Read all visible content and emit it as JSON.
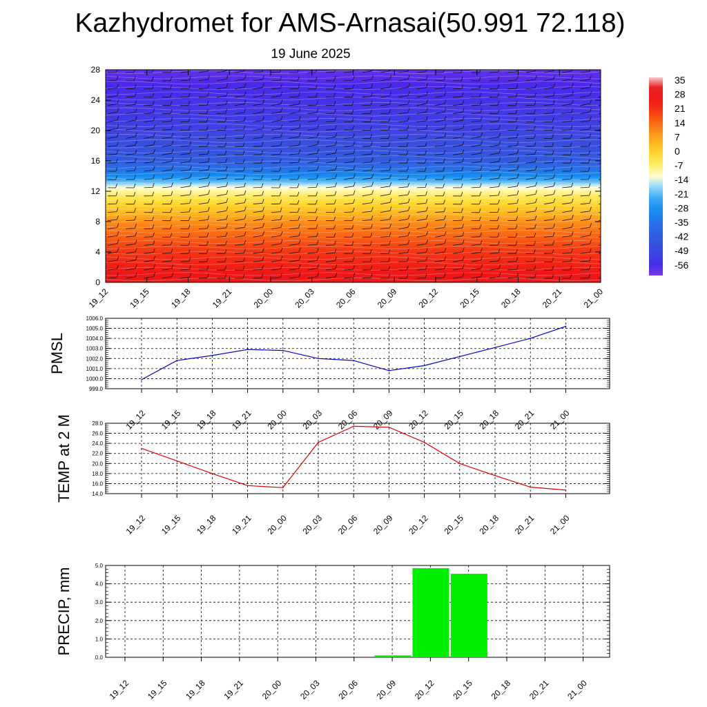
{
  "page": {
    "title": "Kazhydromet for AMS-Arnasai(50.991 72.118)",
    "subtitle": "19 June 2025"
  },
  "time_labels": [
    "19_12",
    "19_15",
    "19_18",
    "19_21",
    "20_00",
    "20_03",
    "20_06",
    "20_09",
    "20_12",
    "20_15",
    "20_18",
    "20_21",
    "21_00"
  ],
  "colors": {
    "pmsl_line": "#0000cc",
    "temp_line": "#dd0000",
    "precip_bar": "#00ee00",
    "grid": "#000000"
  },
  "chart_data": [
    {
      "type": "heatmap",
      "description_key": "altitude-time temperature cross-section with wind barbs",
      "y_ticks": [
        0,
        4,
        8,
        12,
        16,
        20,
        24,
        28
      ],
      "ylim": [
        0,
        28
      ],
      "colorbar": {
        "labels": [
          "35",
          "28",
          "21",
          "14",
          "7",
          "0",
          "-7",
          "-14",
          "-21",
          "-28",
          "-35",
          "-42",
          "-49",
          "-56"
        ],
        "range": [
          -60,
          37
        ]
      },
      "profile": [
        {
          "z": 0,
          "value": 28
        },
        {
          "z": 4,
          "value": 21
        },
        {
          "z": 8,
          "value": 10
        },
        {
          "z": 11,
          "value": -3
        },
        {
          "z": 12.5,
          "value": -12
        },
        {
          "z": 14,
          "value": -28
        },
        {
          "z": 16,
          "value": -42
        },
        {
          "z": 20,
          "value": -50
        },
        {
          "z": 24,
          "value": -54
        },
        {
          "z": 28,
          "value": -58
        }
      ]
    },
    {
      "type": "line",
      "ylabel": "PMSL",
      "ylim": [
        999.0,
        1006.0
      ],
      "y_ticks": [
        "999.0",
        "1000.0",
        "1001.0",
        "1002.0",
        "1003.0",
        "1004.0",
        "1005.0",
        "1006.0"
      ],
      "series": [
        {
          "values": [
            999.9,
            1001.8,
            1002.3,
            1002.9,
            1002.8,
            1002.0,
            1001.8,
            1000.8,
            1001.3,
            1002.2,
            1003.1,
            1004.0,
            1005.2
          ]
        }
      ]
    },
    {
      "type": "line",
      "ylabel": "TEMP at 2 M",
      "ylim": [
        14.0,
        28.0
      ],
      "y_ticks": [
        "14.0",
        "16.0",
        "18.0",
        "20.0",
        "22.0",
        "24.0",
        "26.0",
        "28.0"
      ],
      "series": [
        {
          "values": [
            23.0,
            20.5,
            18.0,
            15.6,
            15.2,
            24.2,
            27.4,
            27.2,
            24.2,
            20.0,
            17.6,
            15.3,
            14.7
          ]
        }
      ]
    },
    {
      "type": "bar",
      "ylabel": "PRECIP, mm",
      "ylim": [
        0.0,
        5.0
      ],
      "y_ticks": [
        "0.0",
        "1.0",
        "2.0",
        "3.0",
        "4.0",
        "5.0"
      ],
      "series": [
        {
          "values": [
            0,
            0,
            0,
            0,
            0,
            0,
            0,
            0.1,
            4.85,
            4.55,
            0,
            0,
            0
          ]
        }
      ]
    }
  ]
}
